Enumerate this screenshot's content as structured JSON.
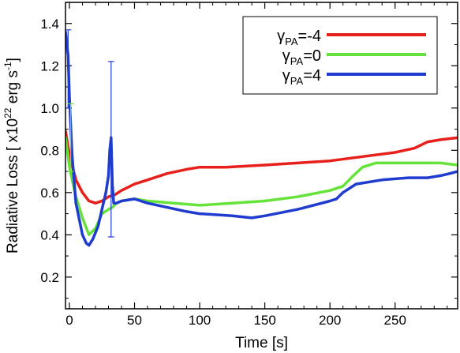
{
  "chart_data": {
    "type": "line",
    "xlabel": "Time [s]",
    "ylabel_main": "Radiative Loss [ x10",
    "ylabel_exp1": "22",
    "ylabel_mid": " erg s",
    "ylabel_exp2": "-1",
    "ylabel_end": "]",
    "xlim": [
      -3,
      298
    ],
    "ylim": [
      0.05,
      1.5
    ],
    "xticks": [
      0,
      50,
      100,
      150,
      200,
      250
    ],
    "yticks": [
      0.2,
      0.4,
      0.6,
      0.8,
      1.0,
      1.2,
      1.4
    ],
    "xtick_labels": [
      "0",
      "50",
      "100",
      "150",
      "200",
      "250"
    ],
    "ytick_labels": [
      "0.2",
      "0.4",
      "0.6",
      "0.8",
      "1.0",
      "1.2",
      "1.4"
    ],
    "legend_placement": "top-right",
    "series": [
      {
        "legend_prefix": "γ",
        "legend_sub": "PA",
        "legend_suffix": "=-4",
        "color": "#e8201c",
        "x": [
          -3,
          0,
          5,
          10,
          15,
          20,
          25,
          30,
          35,
          40,
          50,
          60,
          75,
          90,
          100,
          120,
          150,
          175,
          200,
          225,
          250,
          265,
          275,
          285,
          298
        ],
        "y": [
          0.89,
          0.78,
          0.66,
          0.6,
          0.56,
          0.55,
          0.56,
          0.58,
          0.59,
          0.61,
          0.64,
          0.66,
          0.69,
          0.71,
          0.72,
          0.72,
          0.73,
          0.74,
          0.75,
          0.77,
          0.79,
          0.81,
          0.84,
          0.85,
          0.86
        ]
      },
      {
        "legend_prefix": "γ",
        "legend_sub": "PA",
        "legend_suffix": "=0",
        "color": "#66e33a",
        "x": [
          -3,
          0,
          5,
          10,
          15,
          20,
          25,
          30,
          33,
          36,
          40,
          50,
          60,
          80,
          100,
          125,
          150,
          175,
          200,
          210,
          218,
          225,
          235,
          250,
          270,
          285,
          298
        ],
        "y": [
          0.86,
          0.72,
          0.58,
          0.48,
          0.4,
          0.43,
          0.5,
          0.52,
          0.53,
          0.55,
          0.56,
          0.57,
          0.56,
          0.55,
          0.54,
          0.55,
          0.56,
          0.58,
          0.61,
          0.63,
          0.68,
          0.72,
          0.74,
          0.74,
          0.74,
          0.74,
          0.73
        ]
      },
      {
        "legend_prefix": "γ",
        "legend_sub": "PA",
        "legend_suffix": "=4",
        "color": "#1f3ccf",
        "x": [
          -3,
          -1,
          0,
          2,
          5,
          10,
          13,
          15,
          18,
          22,
          25,
          28,
          30,
          31,
          32,
          33,
          34,
          36,
          40,
          50,
          60,
          75,
          90,
          100,
          125,
          140,
          150,
          175,
          200,
          205,
          210,
          220,
          240,
          260,
          275,
          285,
          292,
          298
        ],
        "y": [
          1.36,
          1.25,
          1.05,
          0.78,
          0.55,
          0.4,
          0.36,
          0.35,
          0.38,
          0.44,
          0.52,
          0.6,
          0.68,
          0.8,
          0.86,
          0.64,
          0.55,
          0.55,
          0.56,
          0.57,
          0.55,
          0.53,
          0.51,
          0.5,
          0.49,
          0.48,
          0.49,
          0.52,
          0.56,
          0.57,
          0.6,
          0.64,
          0.66,
          0.67,
          0.67,
          0.68,
          0.69,
          0.7
        ]
      }
    ],
    "error_bars": [
      {
        "series": 2,
        "x": -1,
        "y": 1.36,
        "low": 1.0,
        "high": 1.37
      },
      {
        "series": 2,
        "x": 32,
        "y": 0.86,
        "low": 0.39,
        "high": 1.22
      },
      {
        "series": 1,
        "x": 1,
        "y": 0.9,
        "low": 0.7,
        "high": 1.02
      }
    ]
  }
}
